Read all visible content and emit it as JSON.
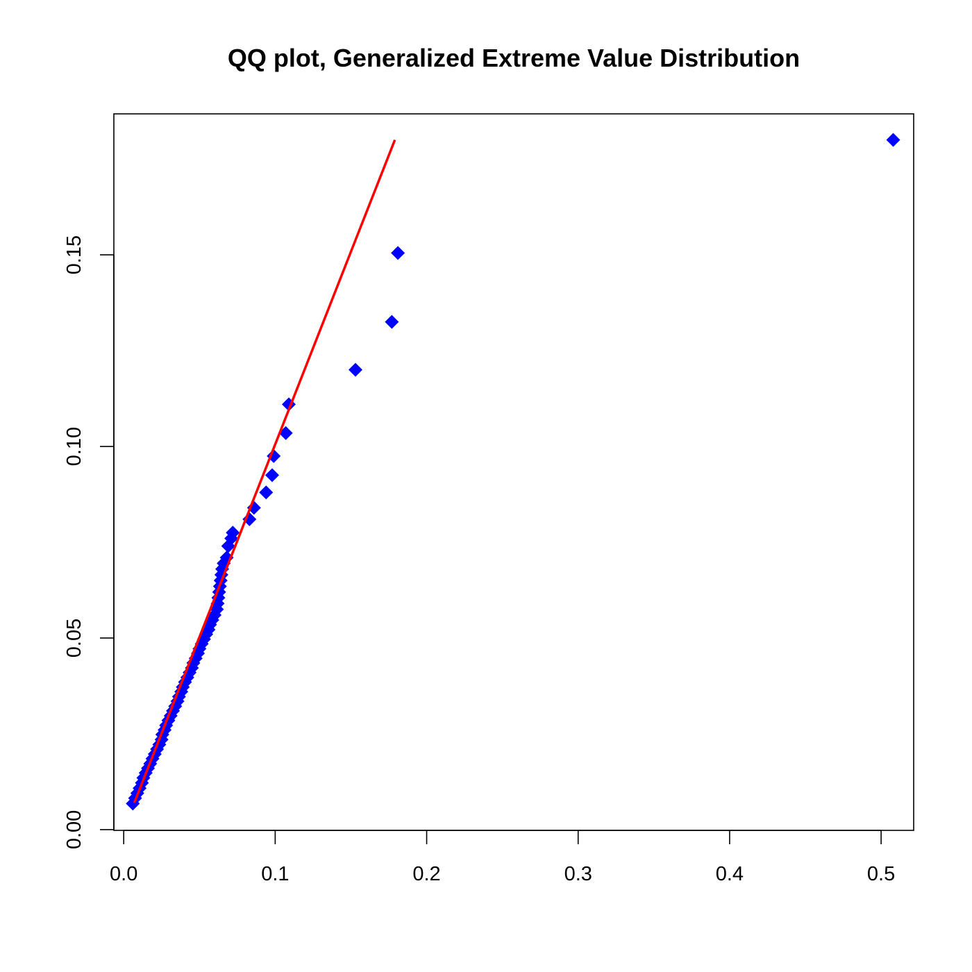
{
  "chart_data": {
    "type": "scatter",
    "title": "QQ plot, Generalized Extreme Value Distribution",
    "xlabel": "",
    "ylabel": "",
    "xlim": [
      -0.0065,
      0.5215
    ],
    "ylim": [
      -0.0002,
      0.1868
    ],
    "xticks": [
      "0.0",
      "0.1",
      "0.2",
      "0.3",
      "0.4",
      "0.5"
    ],
    "yticks": [
      "0.00",
      "0.05",
      "0.10",
      "0.15"
    ],
    "grid": false,
    "legend": "none",
    "point_color": "#0000ff",
    "line_color": "#ff0000",
    "points": [
      [
        0.006,
        0.0068
      ],
      [
        0.0075,
        0.0082
      ],
      [
        0.009,
        0.0095
      ],
      [
        0.0105,
        0.0108
      ],
      [
        0.012,
        0.0122
      ],
      [
        0.013,
        0.0135
      ],
      [
        0.0145,
        0.0148
      ],
      [
        0.016,
        0.016
      ],
      [
        0.0175,
        0.0172
      ],
      [
        0.019,
        0.0185
      ],
      [
        0.0205,
        0.0197
      ],
      [
        0.022,
        0.021
      ],
      [
        0.0235,
        0.0222
      ],
      [
        0.025,
        0.0235
      ],
      [
        0.0255,
        0.0248
      ],
      [
        0.027,
        0.026
      ],
      [
        0.028,
        0.0272
      ],
      [
        0.0295,
        0.0285
      ],
      [
        0.031,
        0.0297
      ],
      [
        0.0325,
        0.031
      ],
      [
        0.034,
        0.0322
      ],
      [
        0.0355,
        0.0335
      ],
      [
        0.0365,
        0.0347
      ],
      [
        0.038,
        0.036
      ],
      [
        0.039,
        0.0372
      ],
      [
        0.0405,
        0.0385
      ],
      [
        0.042,
        0.0397
      ],
      [
        0.0435,
        0.041
      ],
      [
        0.045,
        0.0422
      ],
      [
        0.046,
        0.0435
      ],
      [
        0.0475,
        0.0447
      ],
      [
        0.049,
        0.046
      ],
      [
        0.05,
        0.0472
      ],
      [
        0.0515,
        0.0485
      ],
      [
        0.053,
        0.0497
      ],
      [
        0.0545,
        0.051
      ],
      [
        0.056,
        0.0522
      ],
      [
        0.057,
        0.0535
      ],
      [
        0.0585,
        0.0547
      ],
      [
        0.06,
        0.056
      ],
      [
        0.0615,
        0.0575
      ],
      [
        0.062,
        0.059
      ],
      [
        0.0625,
        0.0605
      ],
      [
        0.063,
        0.062
      ],
      [
        0.0635,
        0.0635
      ],
      [
        0.064,
        0.065
      ],
      [
        0.0645,
        0.0665
      ],
      [
        0.065,
        0.068
      ],
      [
        0.066,
        0.0695
      ],
      [
        0.068,
        0.071
      ],
      [
        0.069,
        0.074
      ],
      [
        0.071,
        0.076
      ],
      [
        0.072,
        0.0775
      ],
      [
        0.083,
        0.081
      ],
      [
        0.086,
        0.084
      ],
      [
        0.094,
        0.088
      ],
      [
        0.098,
        0.0925
      ],
      [
        0.099,
        0.0975
      ],
      [
        0.107,
        0.1035
      ],
      [
        0.109,
        0.111
      ],
      [
        0.153,
        0.12
      ],
      [
        0.177,
        0.1325
      ],
      [
        0.181,
        0.1505
      ],
      [
        0.508,
        0.18
      ]
    ],
    "reference_line": {
      "x": [
        0.007,
        0.179
      ],
      "y": [
        0.007,
        0.18
      ]
    }
  }
}
